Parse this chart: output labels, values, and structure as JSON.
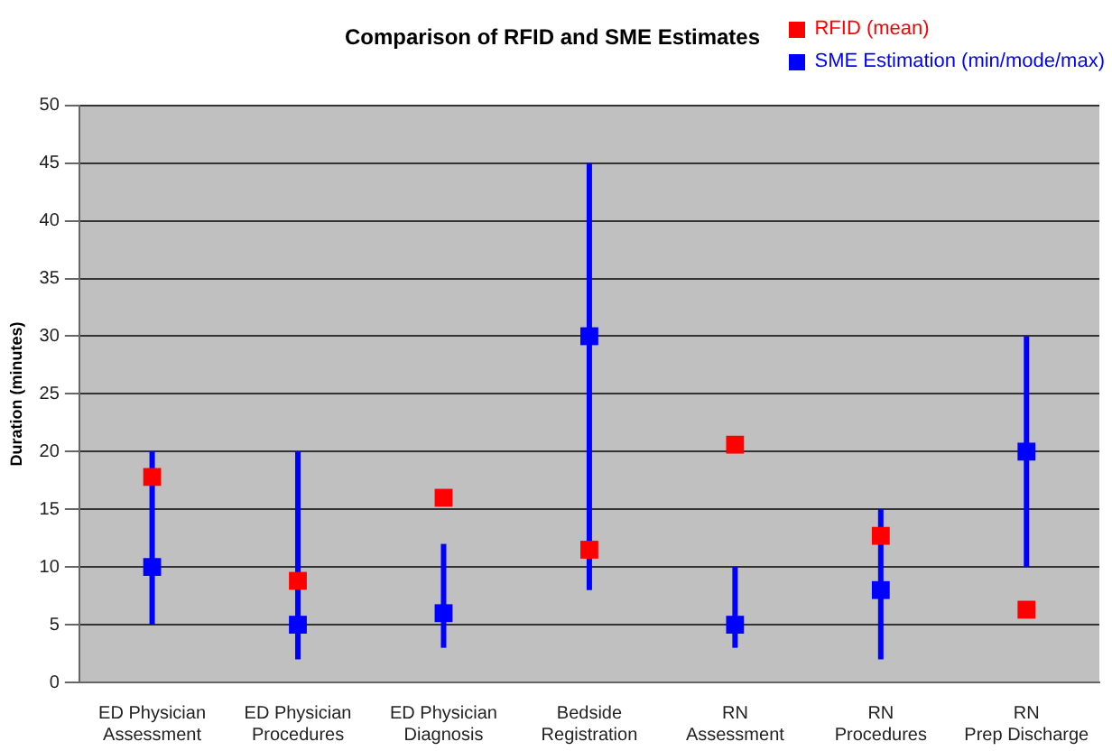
{
  "chart_data": {
    "type": "scatter",
    "title": "Comparison of RFID and SME Estimates",
    "ylabel": "Duration (minutes)",
    "categories": [
      "ED Physician\nAssessment",
      "ED Physician\nProcedures",
      "ED Physician\nDiagnosis",
      "Bedside\nRegistration",
      "RN\nAssessment",
      "RN\nProcedures",
      "RN\nPrep Discharge"
    ],
    "series": [
      {
        "name": "RFID (mean)",
        "color": "#ff0000",
        "values": [
          17.8,
          8.8,
          16,
          11.5,
          20.6,
          12.7,
          6.3
        ]
      },
      {
        "name": "SME Estimation (min/mode/max)",
        "color": "#0000ff",
        "values": [
          10,
          5,
          6,
          30,
          5,
          8,
          20
        ],
        "errors": [
          [
            5,
            20
          ],
          [
            2,
            20
          ],
          [
            3,
            12
          ],
          [
            8,
            45
          ],
          [
            3,
            10
          ],
          [
            2,
            15
          ],
          [
            10,
            30
          ]
        ]
      }
    ],
    "ylim": [
      0,
      50
    ],
    "yticks": [
      0,
      5,
      10,
      15,
      20,
      25,
      30,
      35,
      40,
      45,
      50
    ],
    "grid": "y",
    "legend": "top right",
    "marker": "square"
  }
}
